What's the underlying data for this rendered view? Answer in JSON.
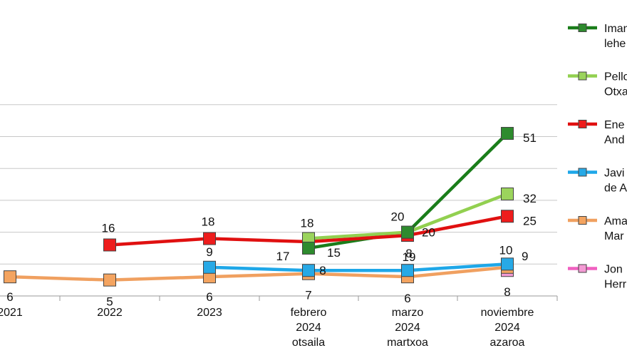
{
  "chart_data": {
    "type": "line",
    "title": "",
    "xlabel": "",
    "ylabel": "",
    "ylim": [
      0,
      60
    ],
    "grid": true,
    "legend_position": "right",
    "categories": [
      [
        "2021"
      ],
      [
        "2022"
      ],
      [
        "2023"
      ],
      [
        "febrero",
        "2024",
        "otsaila"
      ],
      [
        "marzo",
        "2024",
        "martxoa"
      ],
      [
        "noviembre",
        "2024",
        "azaroa"
      ]
    ],
    "series": [
      {
        "name": [
          "Iman",
          "lehe"
        ],
        "color": "#1a7d1a",
        "marker_color": "#2e8b2e",
        "values": [
          null,
          null,
          null,
          15,
          20,
          51
        ]
      },
      {
        "name": [
          "Pello",
          "Otxa"
        ],
        "color": "#92d050",
        "marker_color": "#9bd45c",
        "values": [
          null,
          null,
          null,
          18,
          20,
          32
        ]
      },
      {
        "name": [
          "Ene",
          "And"
        ],
        "color": "#e01010",
        "marker_color": "#ee1c1c",
        "values": [
          null,
          16,
          18,
          17,
          19,
          25
        ]
      },
      {
        "name": [
          "Javi",
          "de A"
        ],
        "color": "#1ea7e8",
        "marker_color": "#27a9e6",
        "values": [
          null,
          null,
          9,
          8,
          8,
          10
        ]
      },
      {
        "name": [
          "Ama",
          "Mar"
        ],
        "color": "#f0a060",
        "marker_color": "#f4a460",
        "values": [
          6,
          5,
          6,
          7,
          6,
          9
        ]
      },
      {
        "name": [
          "Jon",
          "Herr"
        ],
        "color": "#f060c0",
        "marker_color": "#f49ad4",
        "values": [
          null,
          null,
          null,
          null,
          null,
          8
        ]
      }
    ],
    "data_labels": [
      {
        "series": 0,
        "index": 3,
        "text": "15"
      },
      {
        "series": 0,
        "index": 4,
        "text": "20"
      },
      {
        "series": 0,
        "index": 5,
        "text": "51"
      },
      {
        "series": 1,
        "index": 3,
        "text": "18"
      },
      {
        "series": 1,
        "index": 4,
        "text": "20"
      },
      {
        "series": 1,
        "index": 5,
        "text": "32"
      },
      {
        "series": 2,
        "index": 1,
        "text": "16"
      },
      {
        "series": 2,
        "index": 2,
        "text": "18"
      },
      {
        "series": 2,
        "index": 3,
        "text": "17"
      },
      {
        "series": 2,
        "index": 4,
        "text": "19"
      },
      {
        "series": 2,
        "index": 5,
        "text": "25"
      },
      {
        "series": 3,
        "index": 2,
        "text": "9"
      },
      {
        "series": 3,
        "index": 3,
        "text": "8"
      },
      {
        "series": 3,
        "index": 4,
        "text": "8"
      },
      {
        "series": 3,
        "index": 5,
        "text": "10"
      },
      {
        "series": 4,
        "index": 0,
        "text": "6"
      },
      {
        "series": 4,
        "index": 1,
        "text": "5"
      },
      {
        "series": 4,
        "index": 2,
        "text": "6"
      },
      {
        "series": 4,
        "index": 3,
        "text": "7"
      },
      {
        "series": 4,
        "index": 4,
        "text": "6"
      },
      {
        "series": 4,
        "index": 5,
        "text": "9"
      },
      {
        "series": 5,
        "index": 5,
        "text": "8"
      }
    ]
  }
}
